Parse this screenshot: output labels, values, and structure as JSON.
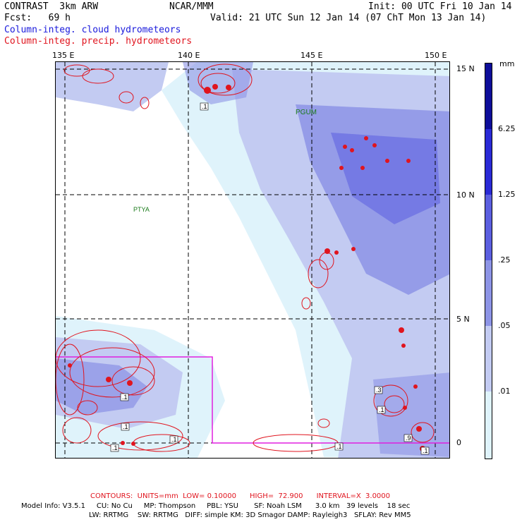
{
  "header": {
    "model": "CONTRAST  3km ARW",
    "org": "NCAR/MMM",
    "init": "Init: 00 UTC Fri 10 Jan 14",
    "fcst": "Fcst:   69 h",
    "valid": "Valid: 21 UTC Sun 12 Jan 14 (07 ChT Mon 13 Jan 14)",
    "field1": "Column-integ. cloud hydrometeors",
    "field2": "Column-integ. precip. hydrometeors"
  },
  "colors": {
    "cloud_label": "#1a1adc",
    "precip_label": "#e0141e",
    "level1": "#dff3fb",
    "level2": "#c3cbf2",
    "level3": "#8d94e6",
    "level4": "#5b5fe0",
    "level5": "#2a2ad6",
    "level6": "#0d0d9a",
    "box": "#e020e0"
  },
  "axes": {
    "lon_labels": [
      "135 E",
      "140 E",
      "145 E",
      "150 E"
    ],
    "lat_labels": [
      "15 N",
      "10 N",
      "5 N",
      "0"
    ]
  },
  "places": {
    "pgum": "PGUM",
    "ptya": "PTYA"
  },
  "legend": {
    "unit": "mm",
    "levels": [
      "6.25",
      "1.25",
      ".25",
      ".05",
      ".01"
    ]
  },
  "contour_labels": [
    ".1",
    ".1",
    ".1",
    ".1",
    ".3",
    ".1",
    ".9",
    ".1",
    ".1",
    ".1"
  ],
  "footer": {
    "contours": "CONTOURS:  UNITS=mm  LOW= 0.10000      HIGH=  72.900      INTERVAL=X  3.0000",
    "model_line1": "Model Info: V3.5.1     CU: No Cu     MP: Thompson     PBL: YSU       SF: Noah LSM      3.0 km   39 levels    18 sec",
    "model_line2": "LW: RRTMG    SW: RRTMG   DIFF: simple KM: 3D Smagor DAMP: Rayleigh3   SFLAY: Rev MM5"
  }
}
